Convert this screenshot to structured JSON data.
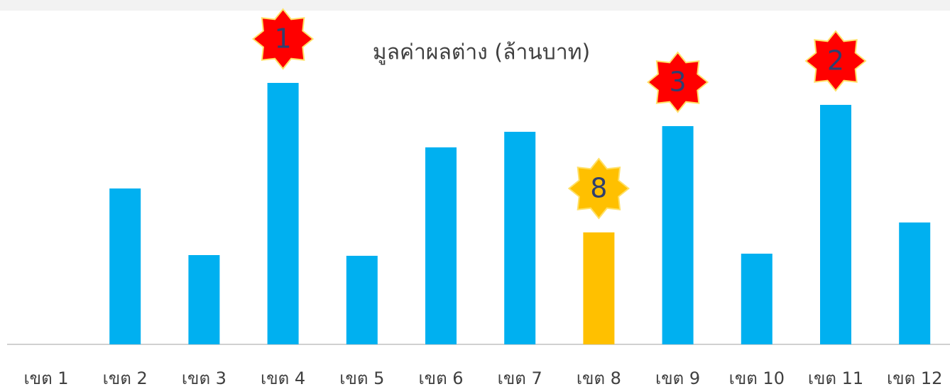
{
  "chart_data": {
    "type": "bar",
    "title": "มูลค่าผลต่าง (ล้านบาท)",
    "categories": [
      "เขต 1",
      "เขต 2",
      "เขต 3",
      "เขต 4",
      "เขต 5",
      "เขต 6",
      "เขต 7",
      "เขต 8",
      "เขต 9",
      "เขต 10",
      "เขต 11",
      "เขต 12"
    ],
    "values": [
      0,
      220,
      126,
      369,
      125,
      278,
      300,
      158,
      308,
      128,
      338,
      172
    ],
    "colors": [
      "#00b0f0",
      "#00b0f0",
      "#00b0f0",
      "#00b0f0",
      "#00b0f0",
      "#00b0f0",
      "#00b0f0",
      "#ffc000",
      "#00b0f0",
      "#00b0f0",
      "#00b0f0",
      "#00b0f0"
    ],
    "ylim": [
      0,
      400
    ],
    "annotations": [
      {
        "text": "1",
        "category": "เขต 4",
        "color": "#ff0000"
      },
      {
        "text": "2",
        "category": "เขต 11",
        "color": "#ff0000"
      },
      {
        "text": "3",
        "category": "เขต 9",
        "color": "#ff0000"
      },
      {
        "text": "8",
        "category": "เขต 8",
        "color": "#ffc000"
      }
    ]
  }
}
